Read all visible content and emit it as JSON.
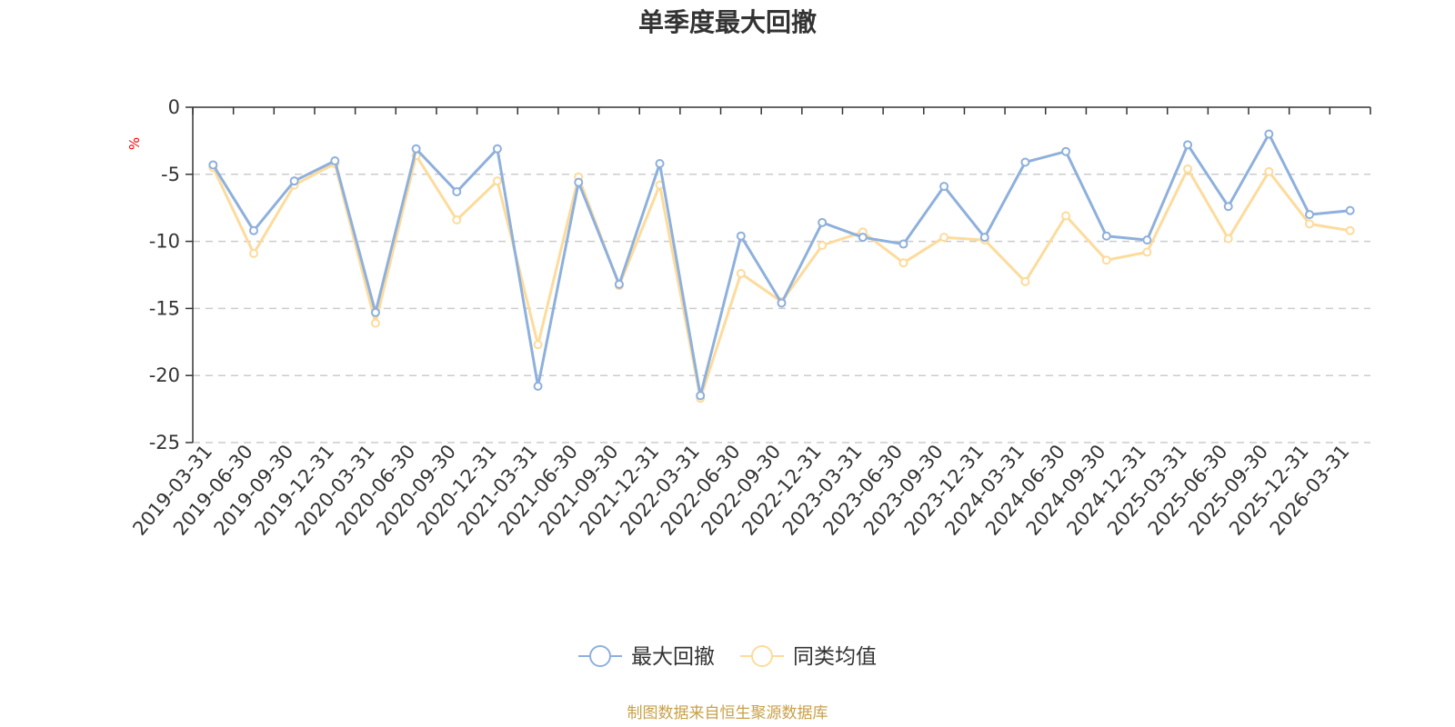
{
  "chart_data": {
    "type": "line",
    "title": "单季度最大回撤",
    "ylabel": "%",
    "ylim": [
      -25,
      0
    ],
    "yticks": [
      0,
      -5,
      -10,
      -15,
      -20,
      -25
    ],
    "grid": true,
    "legend_position": "bottom",
    "categories": [
      "2019-03-31",
      "2019-06-30",
      "2019-09-30",
      "2019-12-31",
      "2020-03-31",
      "2020-06-30",
      "2020-09-30",
      "2020-12-31",
      "2021-03-31",
      "2021-06-30",
      "2021-09-30",
      "2021-12-31",
      "2022-03-31",
      "2022-06-30",
      "2022-09-30",
      "2022-12-31",
      "2023-03-31",
      "2023-06-30",
      "2023-09-30",
      "2023-12-31",
      "2024-03-31",
      "2024-06-30",
      "2024-09-30",
      "2024-12-31",
      "2025-03-31",
      "2025-06-30",
      "2025-09-30",
      "2025-12-31",
      "2026-03-31"
    ],
    "series": [
      {
        "name": "最大回撤",
        "color": "#8eb0dc",
        "values": [
          -4.3,
          -9.2,
          -5.5,
          -4.0,
          -15.3,
          -3.1,
          -6.3,
          -3.1,
          -20.8,
          -5.6,
          -13.2,
          -4.2,
          -21.5,
          -9.6,
          -14.6,
          -8.6,
          -9.7,
          -10.2,
          -5.9,
          -9.7,
          -4.1,
          -3.3,
          -9.6,
          -9.9,
          -2.8,
          -7.4,
          -2.0,
          -8.0,
          -7.7
        ]
      },
      {
        "name": "同类均值",
        "color": "#fddb9c",
        "values": [
          -4.5,
          -10.9,
          -5.8,
          -4.2,
          -16.1,
          -3.6,
          -8.4,
          -5.5,
          -17.7,
          -5.2,
          -13.3,
          -5.8,
          -21.7,
          -12.4,
          -14.5,
          -10.3,
          -9.3,
          -11.6,
          -9.7,
          -9.9,
          -13.0,
          -8.1,
          -11.4,
          -10.8,
          -4.6,
          -9.8,
          -4.8,
          -8.7,
          -9.2
        ]
      }
    ]
  },
  "footer": {
    "source_text": "制图数据来自恒生聚源数据库",
    "source_color": "#c8a048"
  },
  "colors": {
    "axis": "#333333",
    "grid": "#cccccc",
    "unit": "#ff0000"
  }
}
